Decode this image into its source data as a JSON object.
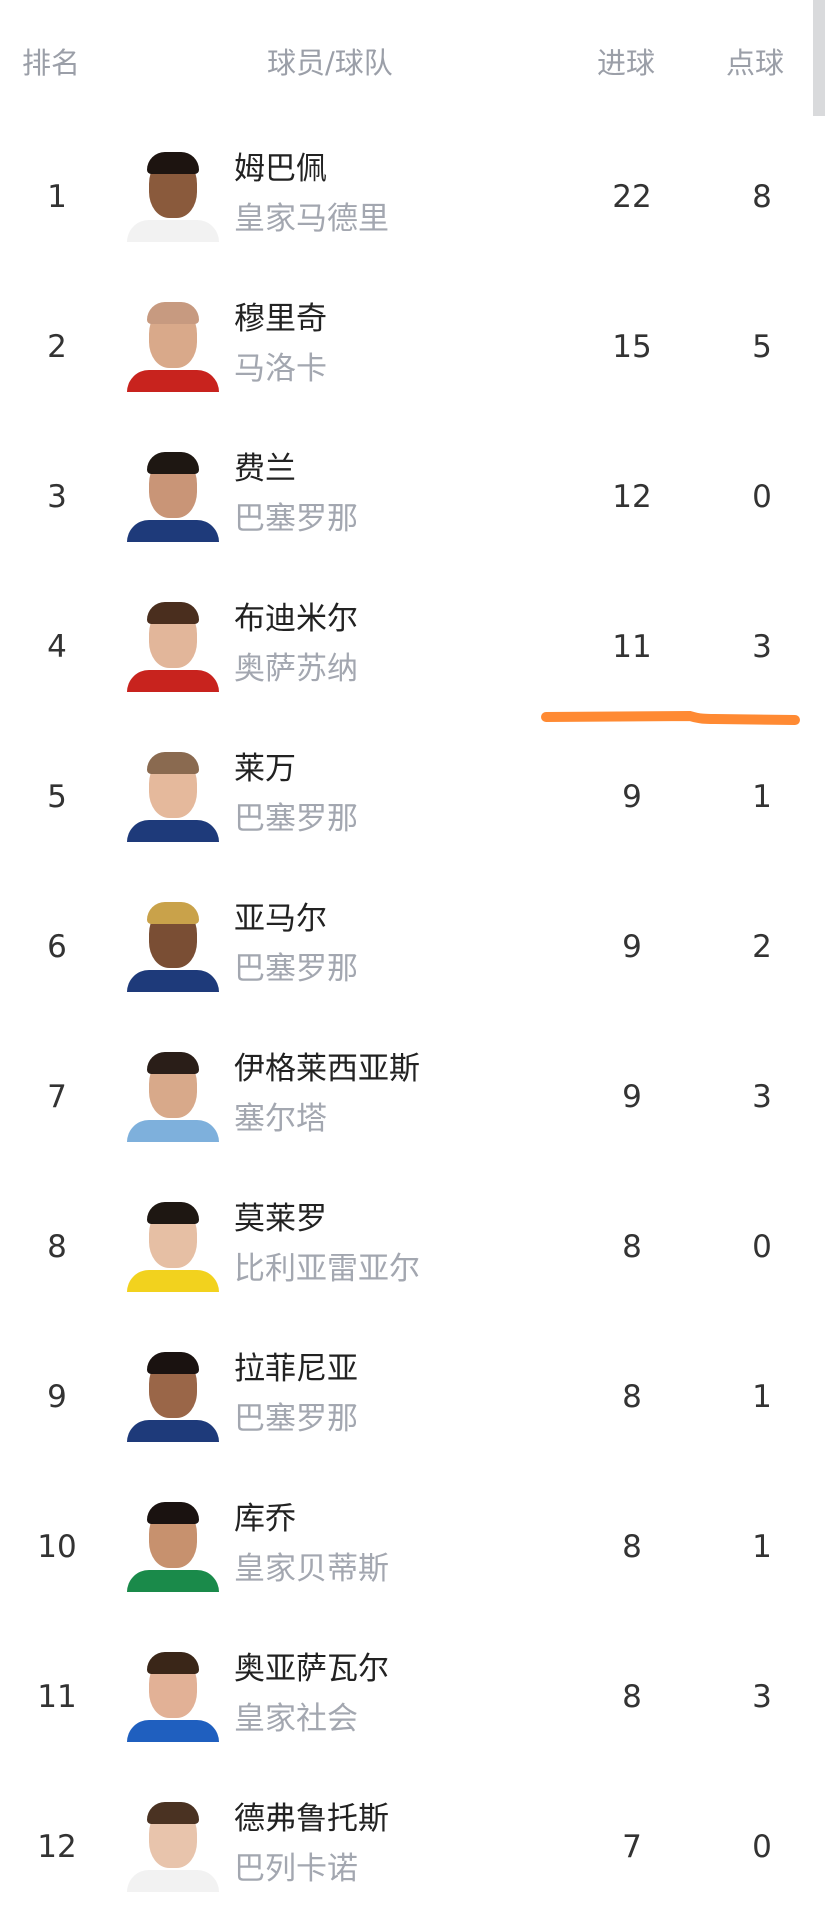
{
  "header": {
    "rank": "排名",
    "player_team": "球员/球队",
    "goals": "进球",
    "penalties": "点球"
  },
  "colors": {
    "highlight_stroke": "#ff8a33",
    "header_text": "#9b9fa8",
    "team_text": "#a3a7b0"
  },
  "rows": [
    {
      "rank": "1",
      "name": "姆巴佩",
      "team": "皇家马德里",
      "goals": "22",
      "penalties": "8",
      "skin": "#8a5a3c",
      "hair": "#1d1410",
      "shirt": "#f2f2f2"
    },
    {
      "rank": "2",
      "name": "穆里奇",
      "team": "马洛卡",
      "goals": "15",
      "penalties": "5",
      "skin": "#d9a98a",
      "hair": "#c79a80",
      "shirt": "#c8231e"
    },
    {
      "rank": "3",
      "name": "费兰",
      "team": "巴塞罗那",
      "goals": "12",
      "penalties": "0",
      "skin": "#c99577",
      "hair": "#1e1712",
      "shirt": "#1e3a7a"
    },
    {
      "rank": "4",
      "name": "布迪米尔",
      "team": "奥萨苏纳",
      "goals": "11",
      "penalties": "3",
      "skin": "#e2b69a",
      "hair": "#4a2e1e",
      "shirt": "#c8231e"
    },
    {
      "rank": "5",
      "name": "莱万",
      "team": "巴塞罗那",
      "goals": "9",
      "penalties": "1",
      "skin": "#e5b99c",
      "hair": "#8a6a50",
      "shirt": "#1e3a7a"
    },
    {
      "rank": "6",
      "name": "亚马尔",
      "team": "巴塞罗那",
      "goals": "9",
      "penalties": "2",
      "skin": "#7a4e34",
      "hair": "#c9a24a",
      "shirt": "#1e3a7a"
    },
    {
      "rank": "7",
      "name": "伊格莱西亚斯",
      "team": "塞尔塔",
      "goals": "9",
      "penalties": "3",
      "skin": "#d8a98a",
      "hair": "#2a1e18",
      "shirt": "#7eb0dc"
    },
    {
      "rank": "8",
      "name": "莫莱罗",
      "team": "比利亚雷亚尔",
      "goals": "8",
      "penalties": "0",
      "skin": "#e6bfa4",
      "hair": "#1e1712",
      "shirt": "#f2d21e"
    },
    {
      "rank": "9",
      "name": "拉菲尼亚",
      "team": "巴塞罗那",
      "goals": "8",
      "penalties": "1",
      "skin": "#9a6648",
      "hair": "#1a1210",
      "shirt": "#1e3a7a"
    },
    {
      "rank": "10",
      "name": "库乔",
      "team": "皇家贝蒂斯",
      "goals": "8",
      "penalties": "1",
      "skin": "#c7916e",
      "hair": "#1a1210",
      "shirt": "#1a8a4a"
    },
    {
      "rank": "11",
      "name": "奥亚萨瓦尔",
      "team": "皇家社会",
      "goals": "8",
      "penalties": "3",
      "skin": "#e2b196",
      "hair": "#3a2618",
      "shirt": "#1f5fbf"
    },
    {
      "rank": "12",
      "name": "德弗鲁托斯",
      "team": "巴列卡诺",
      "goals": "7",
      "penalties": "0",
      "skin": "#e8c4ac",
      "hair": "#4a3222",
      "shirt": "#f2f2f2"
    }
  ]
}
